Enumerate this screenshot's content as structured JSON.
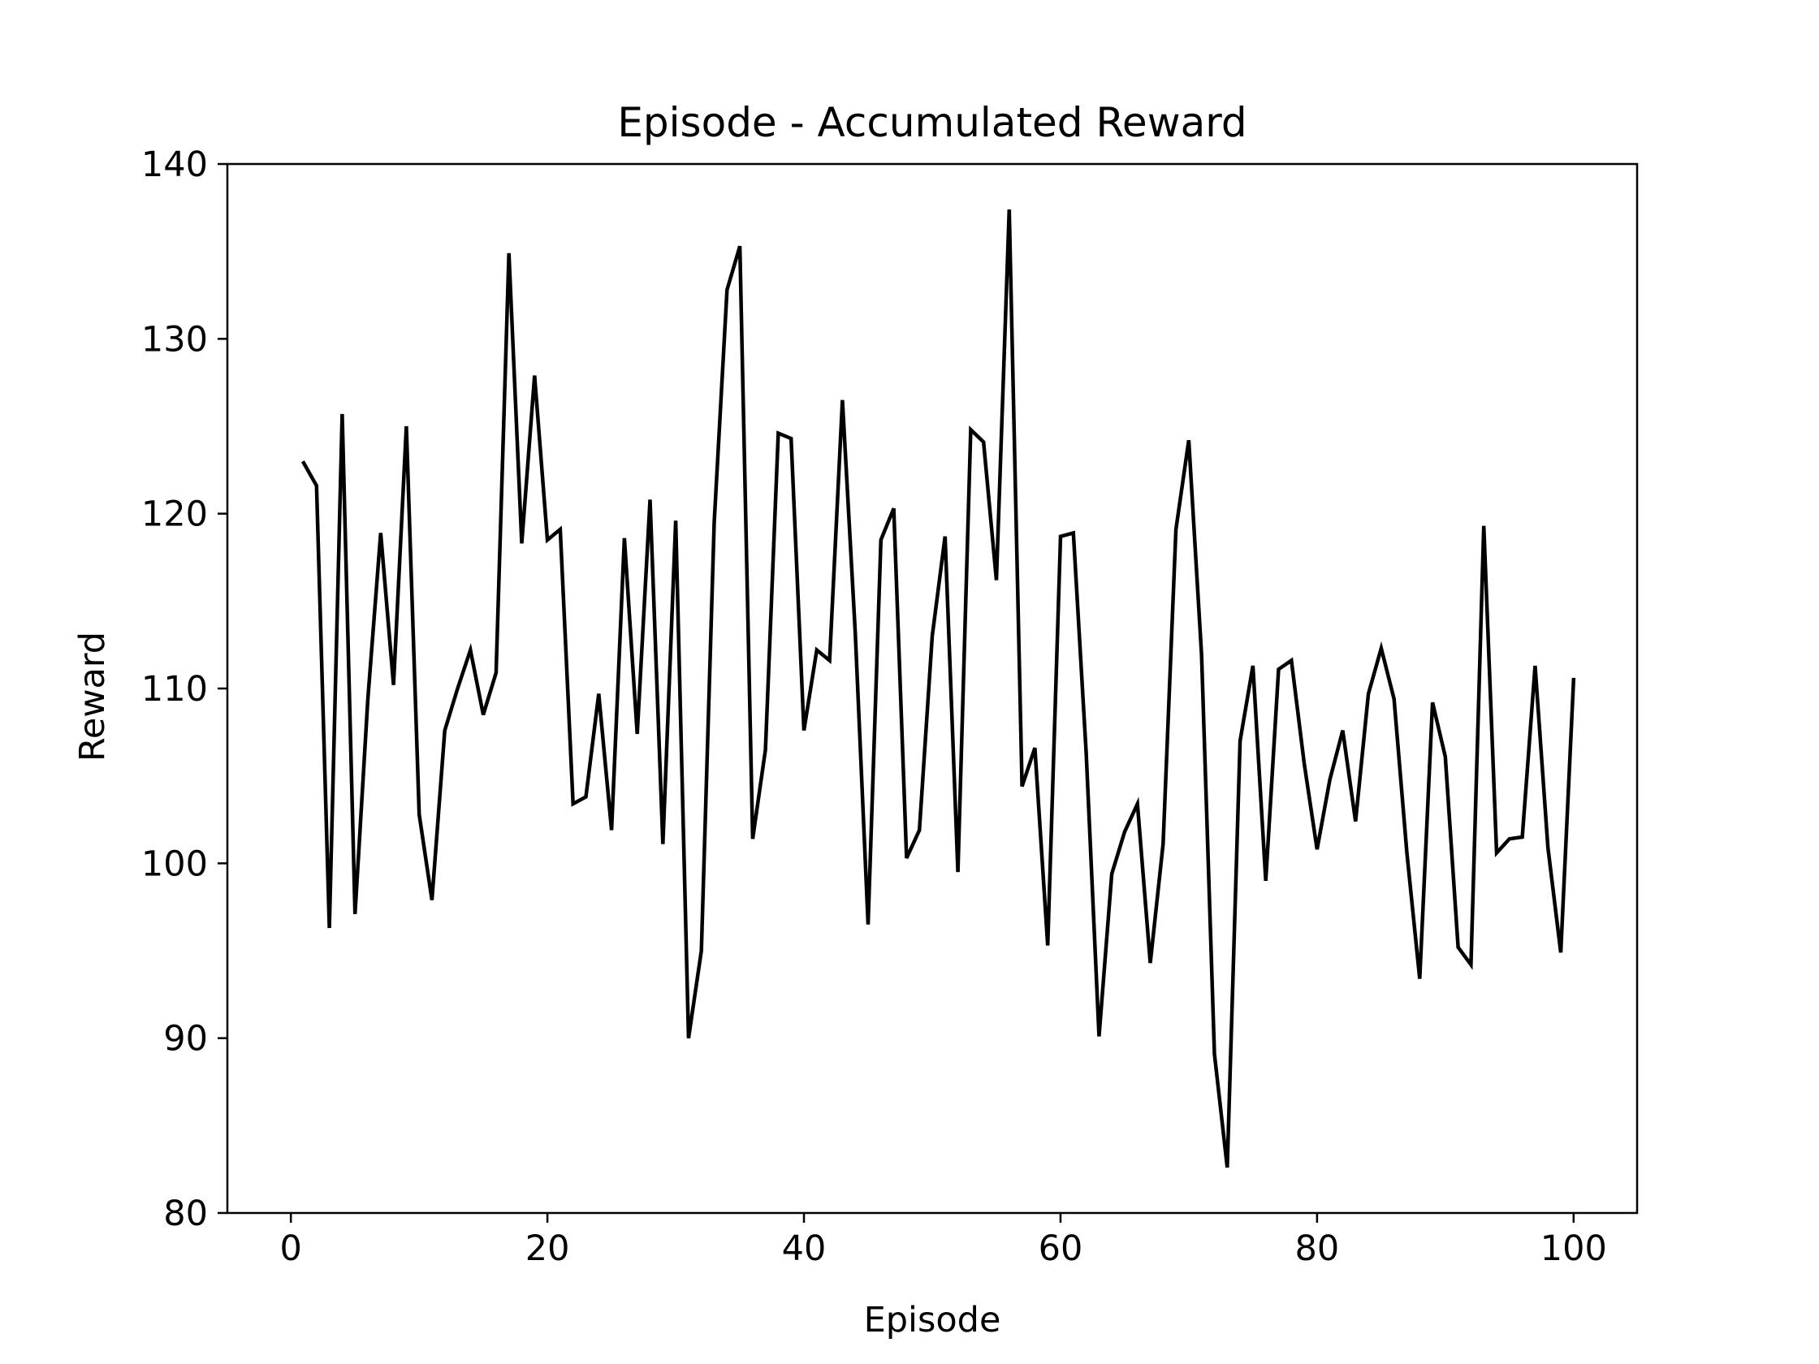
{
  "chart_data": {
    "type": "line",
    "title": "Episode - Accumulated Reward",
    "xlabel": "Episode",
    "ylabel": "Reward",
    "xlim": [
      -4.95,
      104.95
    ],
    "ylim": [
      80,
      140
    ],
    "xticks": [
      0,
      20,
      40,
      60,
      80,
      100
    ],
    "yticks": [
      80,
      90,
      100,
      110,
      120,
      130,
      140
    ],
    "grid": false,
    "line_color": "#000000",
    "x": [
      1,
      2,
      3,
      4,
      5,
      6,
      7,
      8,
      9,
      10,
      11,
      12,
      13,
      14,
      15,
      16,
      17,
      18,
      19,
      20,
      21,
      22,
      23,
      24,
      25,
      26,
      27,
      28,
      29,
      30,
      31,
      32,
      33,
      34,
      35,
      36,
      37,
      38,
      39,
      40,
      41,
      42,
      43,
      44,
      45,
      46,
      47,
      48,
      49,
      50,
      51,
      52,
      53,
      54,
      55,
      56,
      57,
      58,
      59,
      60,
      61,
      62,
      63,
      64,
      65,
      66,
      67,
      68,
      69,
      70,
      71,
      72,
      73,
      74,
      75,
      76,
      77,
      78,
      79,
      80,
      81,
      82,
      83,
      84,
      85,
      86,
      87,
      88,
      89,
      90,
      91,
      92,
      93,
      94,
      95,
      96,
      97,
      98,
      99,
      100
    ],
    "values": [
      122.9,
      121.6,
      96.3,
      125.7,
      97.1,
      109.4,
      118.9,
      110.2,
      125.0,
      102.8,
      97.9,
      107.6,
      110.0,
      112.2,
      108.5,
      110.9,
      134.9,
      118.3,
      127.9,
      118.5,
      119.1,
      103.4,
      103.8,
      109.7,
      101.9,
      118.6,
      107.4,
      120.8,
      101.1,
      119.6,
      90.0,
      95.0,
      119.5,
      132.8,
      135.3,
      101.4,
      106.5,
      124.6,
      124.3,
      107.6,
      112.2,
      111.6,
      126.5,
      113.2,
      96.5,
      118.5,
      120.3,
      100.3,
      101.9,
      113.0,
      118.7,
      99.5,
      124.8,
      124.1,
      116.2,
      137.4,
      104.4,
      106.6,
      95.3,
      118.7,
      118.9,
      106.3,
      90.1,
      99.4,
      101.8,
      103.4,
      94.3,
      101.1,
      119.1,
      124.2,
      111.9,
      89.1,
      82.6,
      107.0,
      111.3,
      99.0,
      111.1,
      111.6,
      105.7,
      100.8,
      104.8,
      107.6,
      102.4,
      109.7,
      112.3,
      109.4,
      100.6,
      93.4,
      109.2,
      106.1,
      95.2,
      94.2,
      119.3,
      100.6,
      101.4,
      101.5,
      111.3,
      100.9,
      94.9,
      110.5
    ]
  }
}
